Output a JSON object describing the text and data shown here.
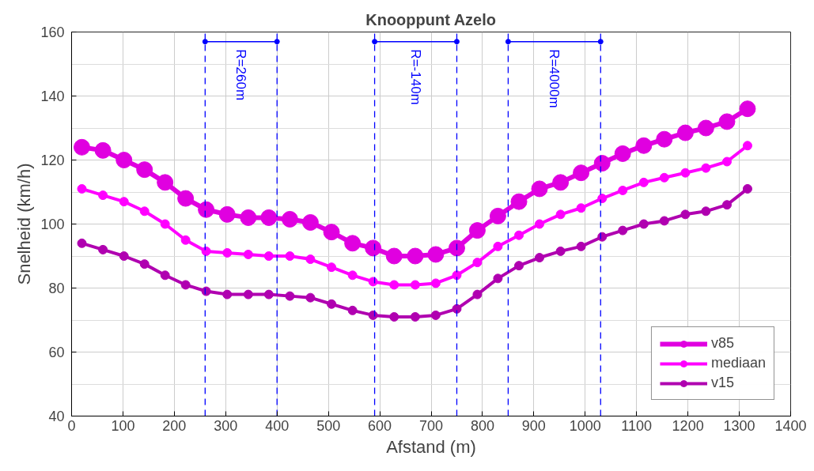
{
  "chart_data": {
    "type": "line",
    "title": "Knooppunt Azelo",
    "xlabel": "Afstand (m)",
    "ylabel": "Snelheid (km/h)",
    "x": [
      20,
      61,
      102,
      142,
      182,
      222,
      262,
      303,
      344,
      384,
      425,
      465,
      506,
      547,
      587,
      628,
      669,
      709,
      750,
      790,
      830,
      871,
      911,
      952,
      992,
      1033,
      1073,
      1114,
      1154,
      1195,
      1235,
      1276,
      1316
    ],
    "series": [
      {
        "name": "v85",
        "color": "#e000e0",
        "values": [
          124,
          123,
          120,
          117,
          113,
          108,
          104.5,
          103,
          102,
          102,
          101.5,
          100.5,
          97.5,
          94,
          92.5,
          90,
          90,
          90.5,
          92.5,
          98,
          102.5,
          107,
          111,
          113,
          116,
          119,
          122,
          124.5,
          126.5,
          128.5,
          130,
          132,
          136
        ]
      },
      {
        "name": "mediaan",
        "color": "#ff00ff",
        "values": [
          111,
          109,
          107,
          104,
          100,
          95,
          91.5,
          91,
          90.5,
          90,
          90,
          89,
          86.5,
          84,
          82,
          81,
          81,
          81.5,
          84,
          88,
          93,
          96.5,
          100,
          103,
          105,
          108,
          110.5,
          113,
          114.5,
          116,
          117.5,
          119.5,
          124.5
        ]
      },
      {
        "name": "v15",
        "color": "#b000b0",
        "values": [
          94,
          92,
          90,
          87.5,
          84,
          81,
          79,
          78,
          78,
          78,
          77.5,
          77,
          75,
          73,
          71.5,
          71,
          71,
          71.5,
          73.5,
          78,
          83,
          87,
          89.5,
          91.5,
          93,
          96,
          98,
          100,
          101,
          103,
          104,
          106,
          111
        ]
      }
    ],
    "ref_lines": [
      {
        "axis": "x",
        "value": 260,
        "color": "#0000ff",
        "line_style": "dashed"
      },
      {
        "axis": "x",
        "value": 400,
        "color": "#0000ff",
        "line_style": "dashed"
      },
      {
        "axis": "x",
        "value": 590,
        "color": "#0000ff",
        "line_style": "dashed"
      },
      {
        "axis": "x",
        "value": 750,
        "color": "#0000ff",
        "line_style": "dashed"
      },
      {
        "axis": "x",
        "value": 850,
        "color": "#0000ff",
        "line_style": "dashed"
      },
      {
        "axis": "x",
        "value": 1030,
        "color": "#0000ff",
        "line_style": "dashed"
      }
    ],
    "annotations": [
      "R=260m",
      "R=-140m",
      "R=4000m"
    ],
    "xlim": [
      0,
      1400
    ],
    "xticks": [
      0,
      100,
      200,
      300,
      400,
      500,
      600,
      700,
      800,
      900,
      1000,
      1100,
      1200,
      1300,
      1400
    ],
    "ylim": [
      40,
      160
    ],
    "yticks": [
      40,
      60,
      80,
      100,
      120,
      140,
      160
    ],
    "grid": true,
    "legend": "bottom right",
    "marker": "circle",
    "line_style": "solid"
  }
}
